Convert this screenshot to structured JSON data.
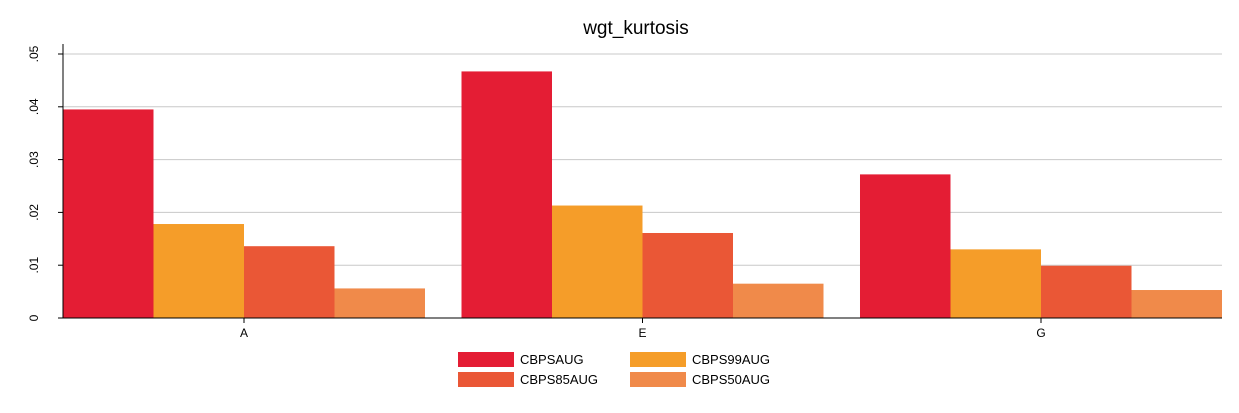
{
  "chart_data": {
    "type": "bar",
    "title": "wgt_kurtosis",
    "xlabel": "",
    "ylabel": "",
    "categories": [
      "A",
      "E",
      "G"
    ],
    "ylim": [
      0,
      0.05
    ],
    "yticks": [
      0,
      0.01,
      0.02,
      0.03,
      0.04,
      0.05
    ],
    "ytick_labels": [
      "0",
      ".01",
      ".02",
      ".03",
      ".04",
      ".05"
    ],
    "grid": true,
    "legend_position": "bottom",
    "series": [
      {
        "name": "CBPSAUG",
        "color": "#e41d34",
        "values": [
          0.0395,
          0.0467,
          0.0272
        ]
      },
      {
        "name": "CBPS99AUG",
        "color": "#f59d29",
        "values": [
          0.0178,
          0.0213,
          0.013
        ]
      },
      {
        "name": "CBPS85AUG",
        "color": "#ea5736",
        "values": [
          0.0136,
          0.0161,
          0.0099
        ]
      },
      {
        "name": "CBPS50AUG",
        "color": "#f08a4a",
        "values": [
          0.0056,
          0.0065,
          0.0053
        ]
      }
    ]
  }
}
